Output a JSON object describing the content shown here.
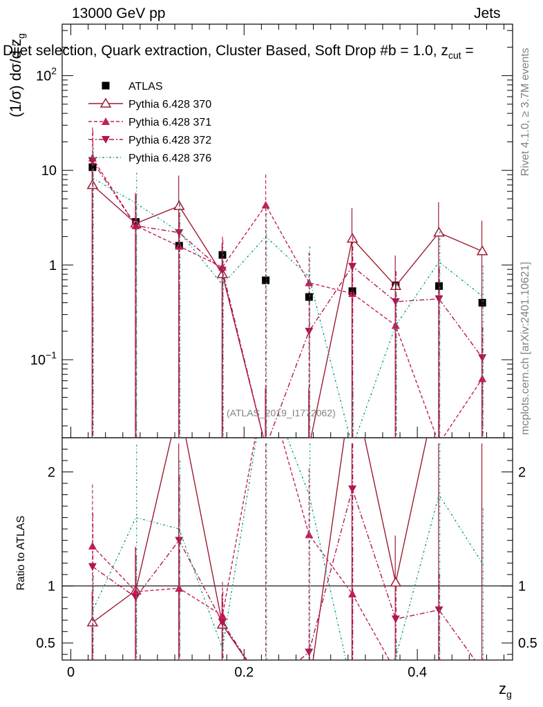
{
  "header": {
    "energy": "13000 GeV pp",
    "category": "Jets",
    "selection": "Dijet selection, Quark extraction, Cluster Based, Soft Drop #b = 1.0, z",
    "selection_sub": "cut",
    "selection_tail": " ="
  },
  "side_labels": {
    "rivet": "Rivet 4.1.0, ≥ 3.7M events",
    "mcplots": "mcplots.cern.ch [arXiv:2401.10621]"
  },
  "analysis_tag": "(ATLAS_2019_I1772062)",
  "axes": {
    "ylabel_main": "(1/σ) dσ/d z",
    "ylabel_main_sub": "g",
    "ylabel_ratio": "Ratio to ATLAS",
    "xlabel": "z",
    "xlabel_sub": "g"
  },
  "colors": {
    "data": "#000000",
    "p370": "#9b1b30",
    "p371": "#c41e5a",
    "p372": "#b3154f",
    "p376": "#1a9e8a"
  },
  "chart_data": {
    "type": "scatter",
    "x": [
      0.025,
      0.075,
      0.125,
      0.175,
      0.225,
      0.275,
      0.325,
      0.375,
      0.425,
      0.475
    ],
    "xlim": [
      -0.01,
      0.51
    ],
    "xticks": [
      "0",
      "0.2",
      "0.4"
    ],
    "xtick_values": [
      0,
      0.2,
      0.4
    ],
    "ylim_main": [
      0.015,
      350
    ],
    "yscale_main": "log",
    "yticks_main": [
      "10^-1",
      "1",
      "10",
      "10^2"
    ],
    "ylim_ratio": [
      0.35,
      2.3
    ],
    "yticks_ratio": [
      "0.5",
      "1",
      "2"
    ],
    "legend": [
      "ATLAS",
      "Pythia 6.428 370",
      "Pythia 6.428 371",
      "Pythia 6.428 372",
      "Pythia 6.428 376"
    ],
    "series": [
      {
        "name": "ATLAS",
        "style": "data",
        "values": [
          10.8,
          2.85,
          1.6,
          1.28,
          0.69,
          0.46,
          0.53,
          0.61,
          0.6,
          0.4
        ]
      },
      {
        "name": "Pythia 6.428 370",
        "style": "p370",
        "values": [
          7.0,
          2.75,
          4.2,
          0.8,
          0.012,
          0.012,
          1.9,
          0.6,
          2.2,
          1.4
        ],
        "ratio": [
          0.68,
          0.96,
          2.6,
          0.66,
          0.1,
          0.1,
          2.8,
          1.03,
          2.8,
          2.8
        ]
      },
      {
        "name": "Pythia 6.428 371",
        "style": "p371",
        "values": [
          13.5,
          2.6,
          1.58,
          0.95,
          4.3,
          0.65,
          0.5,
          0.23,
          0.013,
          0.063
        ],
        "ratio": [
          1.35,
          0.95,
          0.98,
          0.74,
          2.8,
          1.45,
          0.93,
          0.25,
          0.1,
          0.15
        ]
      },
      {
        "name": "Pythia 6.428 372",
        "style": "p372",
        "values": [
          12.5,
          2.6,
          2.2,
          0.88,
          0.012,
          0.2,
          0.97,
          0.41,
          0.44,
          0.105
        ],
        "ratio": [
          1.17,
          0.9,
          1.4,
          0.68,
          0.1,
          0.42,
          1.85,
          0.71,
          0.79,
          0.26
        ]
      },
      {
        "name": "Pythia 6.428 376",
        "style": "p376",
        "values": [
          8.3,
          4.5,
          2.25,
          0.62,
          2.0,
          0.75,
          0.012,
          0.23,
          1.08,
          0.47
        ],
        "ratio": [
          0.78,
          1.6,
          1.5,
          0.45,
          2.8,
          1.8,
          0.1,
          0.37,
          1.8,
          1.2
        ]
      }
    ],
    "errors": {
      "ATLAS": [
        0.5,
        0.15,
        0.1,
        0.08,
        0.05,
        0.05,
        0.05,
        0.05,
        0.05,
        0.04
      ]
    }
  }
}
